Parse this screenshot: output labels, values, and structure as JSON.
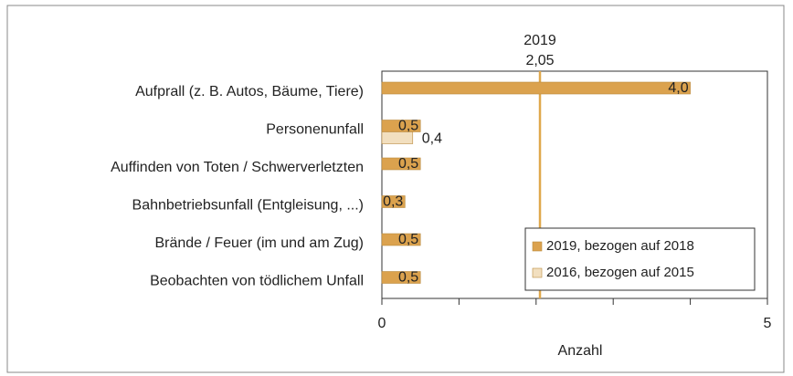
{
  "chart_data": {
    "type": "bar",
    "orientation": "horizontal",
    "categories": [
      "Aufprall (z. B. Autos, Bäume, Tiere)",
      "Personenunfall",
      "Auffinden von Toten / Schwerverletzten",
      "Bahnbetriebsunfall (Entgleisung, ...)",
      "Brände / Feuer (im und am Zug)",
      "Beobachten von tödlichem Unfall"
    ],
    "series": [
      {
        "name": "2019, bezogen auf 2018",
        "color": "#dba24e",
        "values": [
          4.0,
          0.5,
          0.5,
          0.3,
          0.5,
          0.5
        ],
        "value_labels": [
          "4,0",
          "0,5",
          "0,5",
          "0,3",
          "0,5",
          "0,5"
        ]
      },
      {
        "name": "2016, bezogen auf 2015",
        "color": "#f2dfbf",
        "values": [
          null,
          0.4,
          null,
          null,
          null,
          null
        ],
        "value_labels": [
          null,
          "0,4",
          null,
          null,
          null,
          null
        ]
      }
    ],
    "xlim": [
      0,
      5
    ],
    "xticks": [
      0,
      5
    ],
    "xminor_ticks": [
      1,
      2,
      3,
      4
    ],
    "xlabel": "Anzahl",
    "reference_line": {
      "value": 2.05,
      "label_top": "2019",
      "label_value": "2,05",
      "color": "#e0a84c"
    },
    "legend": "lower right"
  }
}
